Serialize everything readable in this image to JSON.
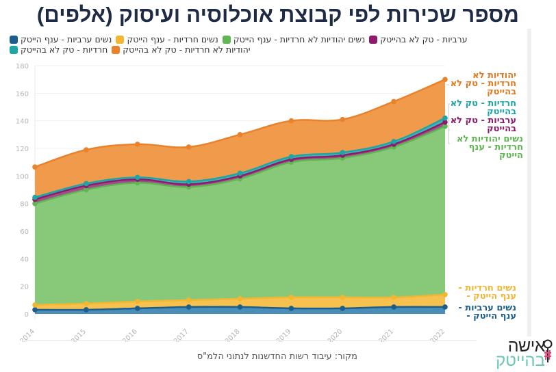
{
  "title": "מספר שכירות לפי קבוצת אוכלוסיה ועיסוק (אלפים)",
  "source": "מקור: עיבוד רשות החדשנות לנתוני הלמ\"ס",
  "logo": {
    "line1": "אישה",
    "line2": "בהייטק",
    "icon": "female-symbol-icon"
  },
  "legend": [
    {
      "name": "נשים ערביות - ענף הייטק",
      "color": "#1b5e8c"
    },
    {
      "name": "נשים חרדיות - ענף הייטק",
      "color": "#f2b632"
    },
    {
      "name": "נשים יהודיות לא חרדיות - ענף הייטק",
      "color": "#5fb653"
    },
    {
      "name": "ערביות - טק לא בהייטק",
      "color": "#8e1a6d"
    },
    {
      "name": "חרדיות - טק לא בהייטק",
      "color": "#1ea5a6"
    },
    {
      "name": "יהודיות לא חרדיות - טק לא בהייטק",
      "color": "#e9822a"
    }
  ],
  "end_labels": [
    {
      "text": "יהודיות לא חרדיות - טק לא בהייטק",
      "color": "#e07a1f"
    },
    {
      "text": "חרדיות - טק לא בהייטק",
      "color": "#1ea5a6"
    },
    {
      "text": "ערביות - טק לא בהייטק",
      "color": "#8e1a6d"
    },
    {
      "text": "נשים יהודיות לא חרדיות - ענף הייטק",
      "color": "#5fb653"
    },
    {
      "text": "נשים חרדיות - ענף הייטק -",
      "color": "#f2b632"
    },
    {
      "text": "נשים ערביות - ענף הייטק -",
      "color": "#1b5e8c"
    }
  ],
  "chart_data": {
    "type": "area",
    "stacked": true,
    "title": "מספר שכירות לפי קבוצת אוכלוסיה ועיסוק (אלפים)",
    "xlabel": "",
    "ylabel": "",
    "x": [
      "2014",
      "2015",
      "2016",
      "2017",
      "2018",
      "2019",
      "2020",
      "2021",
      "2022"
    ],
    "ylim": [
      0,
      180
    ],
    "yticks": [
      0,
      20,
      40,
      60,
      80,
      100,
      120,
      140,
      160,
      180
    ],
    "grid": true,
    "legend_position": "top",
    "series_cumulative_note": "values below are individual (non-cumulative) series; chart stacks them",
    "series": [
      {
        "name": "נשים ערביות - ענף הייטק",
        "color": "#1b5e8c",
        "fill": "#4a8db8",
        "values": [
          3,
          3,
          4,
          5,
          5,
          4,
          4,
          5,
          5
        ]
      },
      {
        "name": "נשים חרדיות - ענף הייטק",
        "color": "#f2b632",
        "fill": "#f6c14f",
        "values": [
          3.5,
          4.5,
          5,
          5,
          6,
          8,
          8,
          7,
          9
        ]
      },
      {
        "name": "נשים יהודיות לא חרדיות - ענף הייטק",
        "color": "#5fb653",
        "fill": "#88c979",
        "values": [
          73.5,
          82.5,
          86,
          82,
          87,
          98,
          101,
          109,
          122
        ]
      },
      {
        "name": "ערביות - טק לא בהייטק",
        "color": "#8e1a6d",
        "fill": "#a04e88",
        "values": [
          3,
          3,
          2.5,
          2,
          2,
          2,
          2,
          2,
          3
        ]
      },
      {
        "name": "חרדיות - טק לא בהייטק",
        "color": "#1ea5a6",
        "fill": "#3fb7b5",
        "values": [
          1.5,
          1.5,
          1.5,
          2,
          2,
          2,
          2,
          2,
          3
        ]
      },
      {
        "name": "יהודיות לא חרדיות - טק לא בהייטק",
        "color": "#e9822a",
        "fill": "#f09a4c",
        "values": [
          22,
          24.5,
          24,
          25,
          28,
          26,
          24,
          29,
          28
        ]
      }
    ]
  }
}
